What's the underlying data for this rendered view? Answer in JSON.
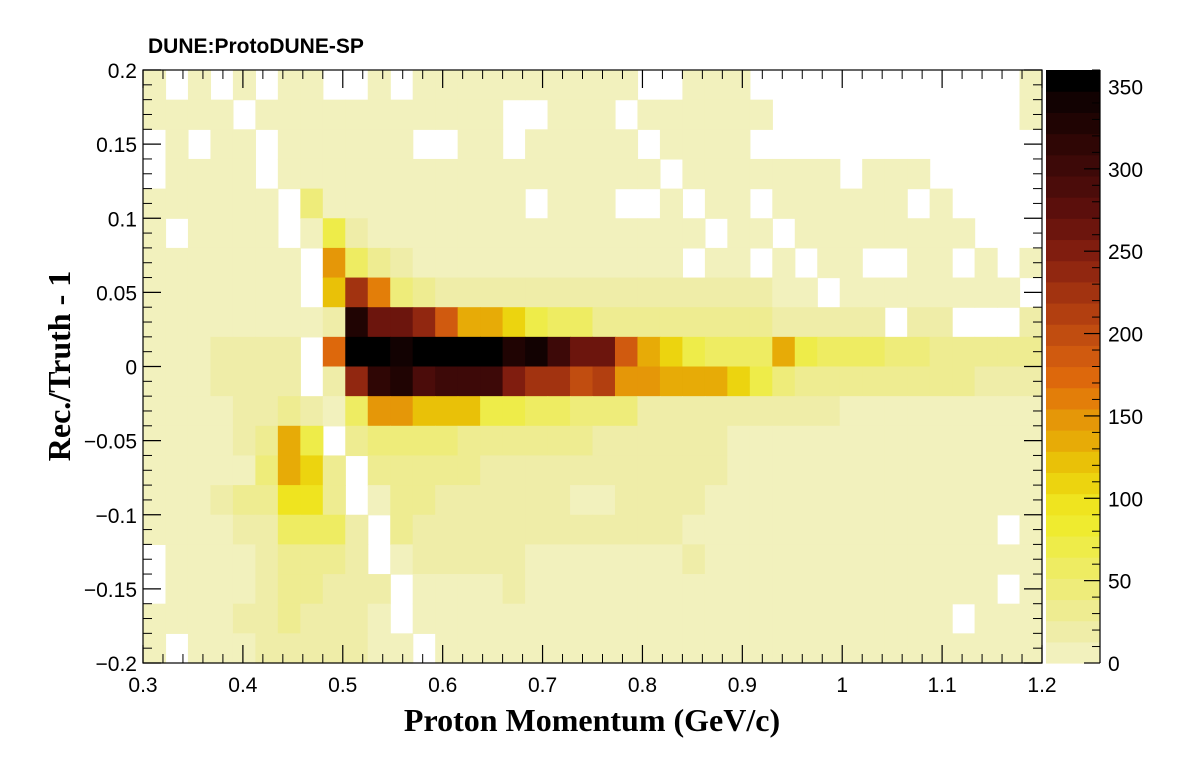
{
  "chart_data": {
    "type": "heatmap",
    "title": "DUNE:ProtoDUNE-SP",
    "xlabel": "Proton Momentum (GeV/c)",
    "ylabel": "Rec./Truth - 1",
    "xlim": [
      0.3,
      1.2
    ],
    "ylim": [
      -0.2,
      0.2
    ],
    "x_ticks": [
      "0.3",
      "0.4",
      "0.5",
      "0.6",
      "0.7",
      "0.8",
      "0.9",
      "1",
      "1.1",
      "1.2"
    ],
    "y_ticks": [
      "−0.2",
      "−0.15",
      "−0.1",
      "−0.05",
      "0",
      "0.05",
      "0.1",
      "0.15",
      "0.2"
    ],
    "colorbar": {
      "range": [
        0,
        360
      ],
      "ticks": [
        "0",
        "50",
        "100",
        "150",
        "200",
        "250",
        "300",
        "350"
      ],
      "palette": [
        "#f2f1bd",
        "#efeda8",
        "#eeec91",
        "#eeec7a",
        "#eeec62",
        "#eeec49",
        "#efeb2f",
        "#efe41f",
        "#ecd40f",
        "#e9c108",
        "#e7ab07",
        "#e59708",
        "#e37e09",
        "#dd680c",
        "#d05a0f",
        "#c14d10",
        "#b23f10",
        "#a23310",
        "#912710",
        "#801d0f",
        "#6c150d",
        "#5b0f0c",
        "#4b0c0a",
        "#3d0908",
        "#2f0605",
        "#200403",
        "#120202",
        "#000000"
      ]
    },
    "nx": 40,
    "ny": 20,
    "values_note": "row 0 = bin at y 0.18..0.20 (top); each row lists 40 bins from x 0.30 to 1.20",
    "values": [
      [
        8,
        0,
        8,
        0,
        8,
        0,
        8,
        8,
        0,
        0,
        8,
        0,
        8,
        8,
        8,
        8,
        8,
        8,
        8,
        8,
        8,
        8,
        0,
        0,
        8,
        8,
        8,
        0,
        0,
        0,
        0,
        0,
        0,
        0,
        0,
        0,
        0,
        0,
        0,
        8
      ],
      [
        8,
        8,
        8,
        8,
        0,
        8,
        8,
        8,
        8,
        8,
        8,
        8,
        8,
        8,
        8,
        8,
        0,
        0,
        8,
        8,
        8,
        0,
        8,
        8,
        8,
        8,
        8,
        8,
        0,
        0,
        0,
        0,
        0,
        0,
        0,
        0,
        0,
        0,
        0,
        8
      ],
      [
        0,
        8,
        0,
        8,
        8,
        0,
        8,
        8,
        8,
        8,
        8,
        8,
        0,
        0,
        8,
        8,
        0,
        8,
        8,
        8,
        8,
        8,
        0,
        8,
        8,
        8,
        8,
        0,
        0,
        0,
        0,
        0,
        0,
        0,
        0,
        0,
        0,
        0,
        0,
        0
      ],
      [
        0,
        8,
        8,
        8,
        8,
        0,
        8,
        8,
        8,
        8,
        8,
        8,
        8,
        8,
        8,
        8,
        8,
        8,
        8,
        8,
        8,
        8,
        8,
        0,
        8,
        8,
        8,
        8,
        8,
        8,
        8,
        0,
        8,
        8,
        8,
        0,
        0,
        0,
        0,
        0
      ],
      [
        8,
        8,
        8,
        8,
        8,
        8,
        0,
        40,
        8,
        8,
        8,
        8,
        8,
        8,
        8,
        8,
        8,
        0,
        8,
        8,
        8,
        0,
        0,
        8,
        0,
        8,
        8,
        0,
        8,
        8,
        8,
        8,
        8,
        8,
        0,
        8,
        0,
        0,
        0,
        0
      ],
      [
        8,
        0,
        8,
        8,
        8,
        8,
        0,
        8,
        70,
        25,
        8,
        8,
        8,
        8,
        8,
        8,
        8,
        8,
        8,
        8,
        8,
        8,
        8,
        8,
        8,
        0,
        8,
        8,
        0,
        8,
        8,
        8,
        8,
        8,
        8,
        8,
        8,
        0,
        0,
        0
      ],
      [
        8,
        8,
        8,
        8,
        8,
        8,
        8,
        0,
        150,
        55,
        30,
        20,
        8,
        8,
        8,
        8,
        8,
        8,
        8,
        8,
        8,
        8,
        8,
        8,
        0,
        8,
        8,
        0,
        8,
        0,
        8,
        8,
        0,
        0,
        8,
        8,
        0,
        8,
        0,
        8
      ],
      [
        8,
        8,
        8,
        8,
        8,
        8,
        8,
        0,
        120,
        230,
        160,
        45,
        30,
        15,
        15,
        15,
        15,
        15,
        15,
        15,
        15,
        15,
        15,
        15,
        15,
        15,
        15,
        15,
        8,
        8,
        0,
        8,
        8,
        8,
        8,
        8,
        8,
        8,
        8,
        0
      ],
      [
        8,
        8,
        8,
        8,
        8,
        8,
        8,
        8,
        20,
        330,
        260,
        260,
        240,
        190,
        140,
        130,
        110,
        70,
        60,
        60,
        30,
        30,
        30,
        30,
        30,
        30,
        30,
        30,
        15,
        15,
        15,
        15,
        15,
        0,
        15,
        15,
        0,
        0,
        0,
        15
      ],
      [
        8,
        8,
        8,
        15,
        15,
        15,
        15,
        0,
        170,
        360,
        360,
        340,
        360,
        360,
        360,
        360,
        330,
        340,
        300,
        260,
        260,
        190,
        140,
        110,
        75,
        60,
        60,
        60,
        130,
        70,
        60,
        60,
        55,
        40,
        40,
        30,
        30,
        30,
        30,
        30
      ],
      [
        8,
        8,
        8,
        15,
        15,
        15,
        15,
        0,
        20,
        240,
        320,
        330,
        290,
        300,
        300,
        300,
        250,
        230,
        220,
        200,
        210,
        150,
        150,
        130,
        130,
        130,
        110,
        70,
        50,
        30,
        30,
        30,
        30,
        30,
        30,
        30,
        30,
        15,
        15,
        15
      ],
      [
        8,
        8,
        8,
        8,
        15,
        15,
        30,
        15,
        8,
        60,
        150,
        150,
        120,
        120,
        120,
        70,
        65,
        60,
        55,
        40,
        40,
        40,
        15,
        15,
        15,
        15,
        15,
        15,
        15,
        15,
        15,
        8,
        8,
        8,
        8,
        8,
        8,
        8,
        8,
        8
      ],
      [
        8,
        8,
        8,
        8,
        15,
        30,
        130,
        70,
        0,
        30,
        40,
        40,
        40,
        40,
        30,
        30,
        30,
        30,
        30,
        30,
        15,
        15,
        15,
        15,
        15,
        15,
        8,
        8,
        8,
        8,
        8,
        8,
        8,
        8,
        8,
        8,
        8,
        8,
        8,
        8
      ],
      [
        8,
        8,
        8,
        8,
        8,
        40,
        130,
        115,
        30,
        0,
        30,
        30,
        30,
        30,
        30,
        15,
        15,
        15,
        15,
        15,
        15,
        15,
        15,
        15,
        15,
        15,
        8,
        8,
        8,
        8,
        8,
        8,
        8,
        8,
        8,
        8,
        8,
        8,
        8,
        8
      ],
      [
        8,
        8,
        8,
        15,
        30,
        30,
        100,
        100,
        30,
        0,
        8,
        30,
        30,
        15,
        15,
        15,
        15,
        15,
        15,
        8,
        8,
        15,
        15,
        15,
        15,
        8,
        8,
        8,
        8,
        8,
        8,
        8,
        8,
        8,
        8,
        8,
        8,
        8,
        8,
        8
      ],
      [
        8,
        8,
        8,
        8,
        15,
        15,
        60,
        60,
        60,
        15,
        0,
        30,
        15,
        15,
        15,
        15,
        15,
        15,
        15,
        15,
        15,
        15,
        15,
        15,
        8,
        8,
        8,
        8,
        8,
        8,
        8,
        8,
        8,
        8,
        8,
        8,
        8,
        8,
        0,
        8
      ],
      [
        0,
        8,
        8,
        8,
        8,
        15,
        30,
        30,
        30,
        15,
        0,
        8,
        15,
        15,
        15,
        15,
        15,
        8,
        8,
        8,
        8,
        8,
        8,
        8,
        15,
        8,
        8,
        8,
        8,
        8,
        8,
        8,
        8,
        8,
        8,
        8,
        8,
        8,
        8,
        8
      ],
      [
        0,
        8,
        8,
        8,
        8,
        15,
        30,
        30,
        15,
        15,
        15,
        0,
        8,
        8,
        8,
        8,
        15,
        8,
        8,
        8,
        8,
        8,
        8,
        8,
        8,
        8,
        8,
        8,
        8,
        8,
        8,
        8,
        8,
        8,
        8,
        8,
        8,
        8,
        0,
        8
      ],
      [
        8,
        8,
        8,
        8,
        15,
        15,
        30,
        15,
        15,
        15,
        8,
        0,
        8,
        8,
        8,
        8,
        8,
        8,
        8,
        8,
        8,
        8,
        8,
        8,
        8,
        8,
        8,
        8,
        8,
        8,
        8,
        8,
        8,
        8,
        8,
        8,
        0,
        8,
        8,
        8
      ],
      [
        8,
        0,
        8,
        8,
        8,
        15,
        15,
        15,
        15,
        15,
        8,
        8,
        0,
        8,
        8,
        8,
        8,
        8,
        8,
        8,
        8,
        8,
        8,
        8,
        8,
        8,
        8,
        8,
        8,
        8,
        8,
        8,
        8,
        8,
        8,
        8,
        8,
        8,
        8,
        8
      ]
    ]
  }
}
